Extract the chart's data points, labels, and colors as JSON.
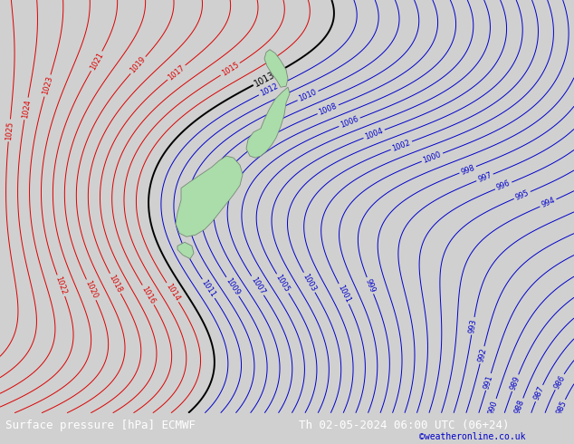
{
  "title_left": "Surface pressure [hPa] ECMWF",
  "title_right": "Th 02-05-2024 06:00 UTC (06+24)",
  "copyright": "©weatheronline.co.uk",
  "bg_color": "#d0d0d0",
  "land_color": "#aaddaa",
  "land_edge_color": "#778877",
  "red_isobar_color": "#dd0000",
  "blue_isobar_color": "#0000cc",
  "black_isobar_color": "#000000",
  "bottom_bar_color": "#111111",
  "bottom_text_color": "#ffffff",
  "copyright_color": "#0000cc",
  "font_size_title": 9,
  "font_size_label": 6,
  "font_size_copyright": 7
}
